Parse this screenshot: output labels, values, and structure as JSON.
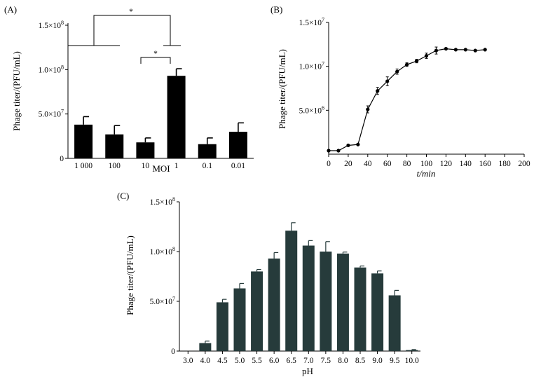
{
  "chart_data": [
    {
      "panel": "(A)",
      "type": "bar",
      "xlabel": "MOI",
      "ylabel": "Phage titer/(PFU/mL)",
      "ylim": [
        0,
        150000000
      ],
      "yticks": [
        0,
        50000000,
        100000000,
        150000000
      ],
      "ytick_labels": [
        "0",
        "5.0×10^7",
        "1.0×10^8",
        "1.5×10^8"
      ],
      "categories": [
        "1 000",
        "100",
        "10",
        "1",
        "0.1",
        "0.01"
      ],
      "values": [
        38000000,
        27000000,
        18000000,
        93000000,
        16000000,
        30000000
      ],
      "errors": [
        9000000,
        10000000,
        5000000,
        8000000,
        7000000,
        10000000
      ],
      "bar_color": "#000000",
      "significance": [
        {
          "label": "*",
          "from": "1 000–0.01",
          "to": "1"
        },
        {
          "label": "*",
          "from": "10",
          "to": "1"
        }
      ]
    },
    {
      "panel": "(B)",
      "type": "line",
      "xlabel": "t/min",
      "ylabel": "Phage titer/(PFU/mL)",
      "xlim": [
        0,
        200
      ],
      "xticks": [
        0,
        20,
        40,
        60,
        80,
        100,
        120,
        140,
        160,
        180,
        200
      ],
      "ylim": [
        0,
        15000000
      ],
      "yticks": [
        5000000,
        10000000,
        15000000
      ],
      "ytick_labels": [
        "5.0×10^6",
        "1.0×10^7",
        "1.5×10^7"
      ],
      "x": [
        0,
        10,
        20,
        30,
        40,
        50,
        60,
        70,
        80,
        90,
        100,
        110,
        120,
        130,
        140,
        150,
        160
      ],
      "y": [
        400000,
        400000,
        1000000,
        1100000,
        5100000,
        7200000,
        8300000,
        9400000,
        10200000,
        10600000,
        11200000,
        11800000,
        12000000,
        11900000,
        11900000,
        11800000,
        11900000
      ],
      "errors": [
        0,
        0,
        0,
        0,
        400000,
        400000,
        500000,
        300000,
        200000,
        200000,
        300000,
        400000,
        0,
        0,
        0,
        0,
        0
      ],
      "line_color": "#000000"
    },
    {
      "panel": "(C)",
      "type": "bar",
      "xlabel": "pH",
      "ylabel": "Phage titer/(PFU/mL)",
      "ylim": [
        0,
        150000000
      ],
      "yticks": [
        0,
        50000000,
        100000000,
        150000000
      ],
      "ytick_labels": [
        "0",
        "5.0×10^7",
        "1.0×10^8",
        "1.5×10^8"
      ],
      "categories": [
        "3.0",
        "4.0",
        "4.5",
        "5.0",
        "5.5",
        "6.0",
        "6.5",
        "7.0",
        "7.5",
        "8.0",
        "8.5",
        "9.0",
        "9.5",
        "10.0"
      ],
      "values": [
        0,
        8000000,
        49000000,
        63000000,
        80000000,
        93000000,
        121000000,
        106000000,
        100000000,
        98000000,
        84000000,
        78000000,
        56000000,
        1000000
      ],
      "errors": [
        0,
        2000000,
        3000000,
        5000000,
        2000000,
        6000000,
        8000000,
        5000000,
        10000000,
        1500000,
        1500000,
        2500000,
        5000000,
        500000
      ],
      "bar_color": "#263b3b"
    }
  ]
}
